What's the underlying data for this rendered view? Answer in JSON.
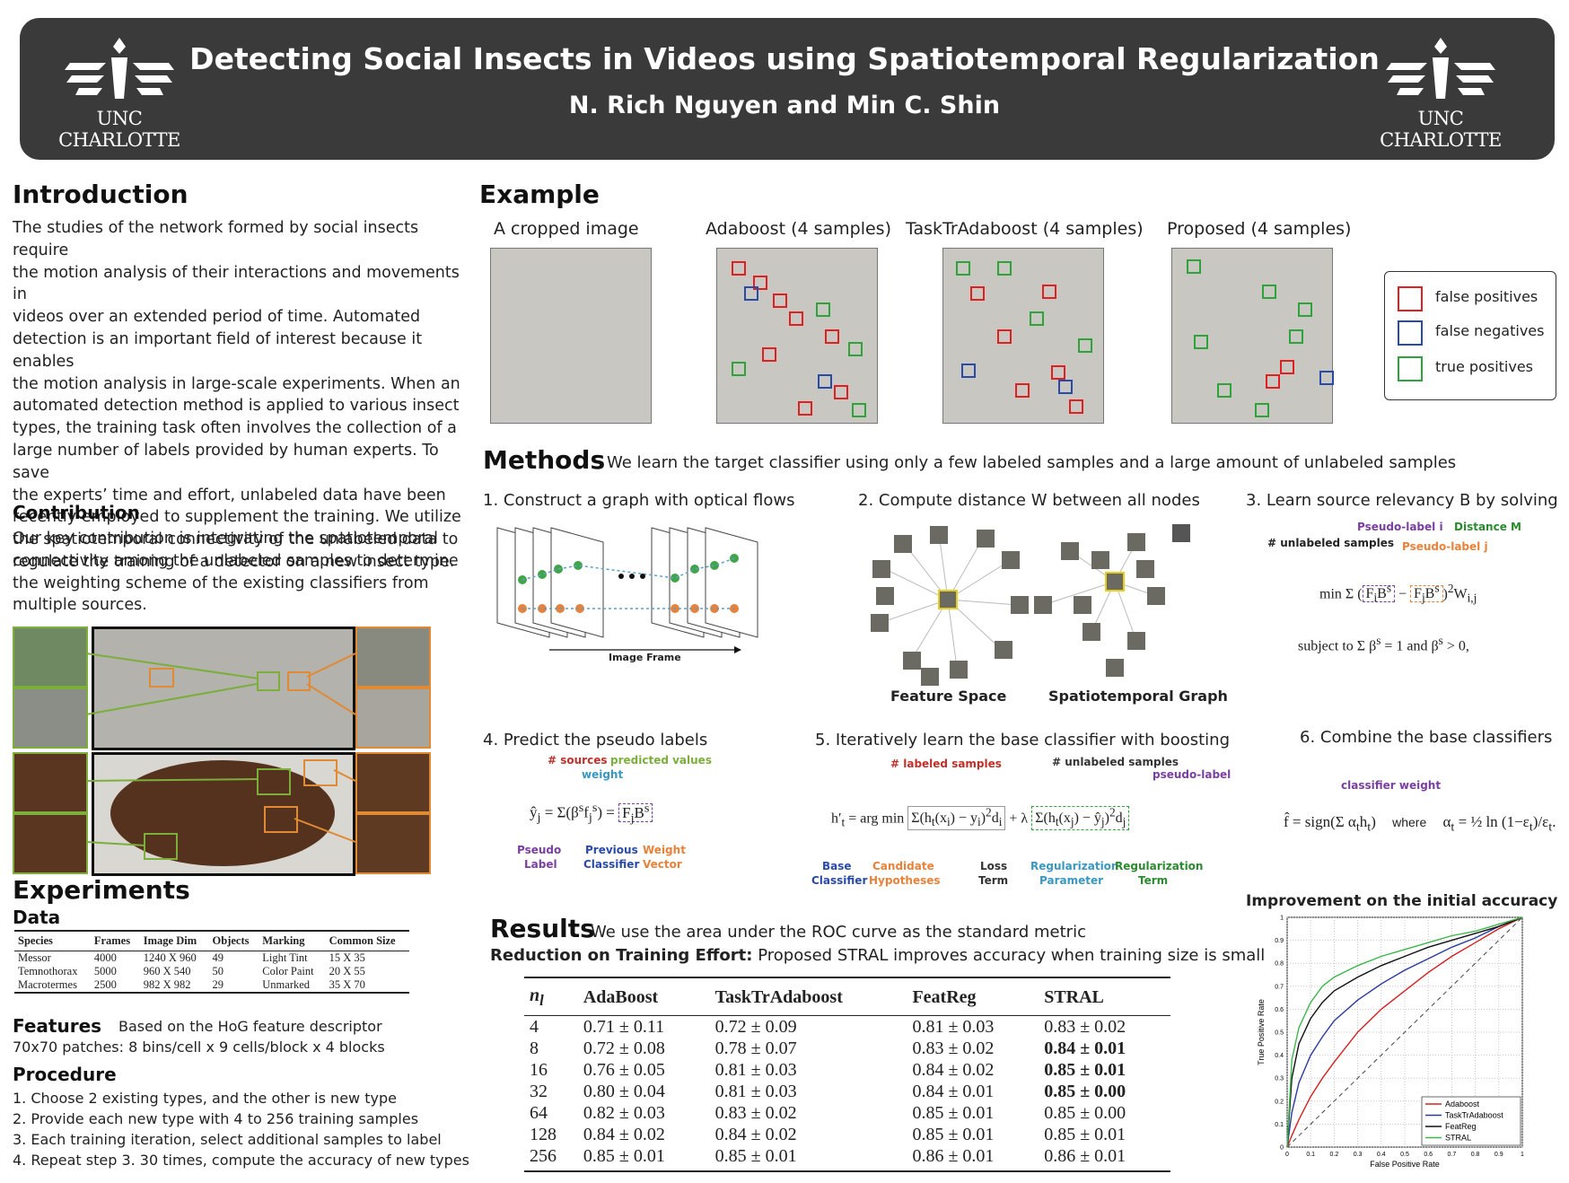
{
  "header": {
    "title": "Detecting Social Insects in Videos using Spatiotemporal Regularization",
    "authors": "N. Rich Nguyen and Min C. Shin",
    "logo_text": "UNC CHARLOTTE"
  },
  "intro": {
    "heading": "Introduction",
    "lines": [
      "The studies of the network formed by social insects require",
      "the motion analysis of their interactions and movements in",
      "videos over an extended period of time. Automated",
      "detection is an important field of interest because it enables",
      "the motion analysis in large-scale experiments. When an",
      "automated detection method is applied to various insect",
      "types, the training task often involves the collection of a",
      "large number of labels provided by human experts. To save",
      "the experts’ time and effort, unlabeled data have been",
      "recently employed to supplement the training. We utilize",
      "the spatiotemporal connectivity of the unlabeled data to",
      "regulate the training of a detector on a new insect type."
    ]
  },
  "contribution": {
    "heading": "Contribution",
    "lines": [
      "Our key contribution is integrating the spatiotemporal",
      "connectivity among the unlabeled samples to determine",
      "the weighting scheme of the existing classifiers from",
      "multiple sources."
    ]
  },
  "experiments": {
    "heading": "Experiments",
    "data_heading": "Data",
    "table_headers": [
      "Species",
      "Frames",
      "Image Dim",
      "Objects",
      "Marking",
      "Common Size"
    ],
    "table_rows": [
      [
        "Messor",
        "4000",
        "1240 X 960",
        "49",
        "Light Tint",
        "15 X 35"
      ],
      [
        "Temnothorax",
        "5000",
        "960 X 540",
        "50",
        "Color Paint",
        "20 X 55"
      ],
      [
        "Macrotermes",
        "2500",
        "982 X 982",
        "29",
        "Unmarked",
        "35 X 70"
      ]
    ],
    "features_heading": "Features",
    "features_text": "Based on the HoG feature descriptor",
    "features_line2": "70x70 patches: 8 bins/cell x 9 cells/block x 4 blocks",
    "procedure_heading": "Procedure",
    "procedure": [
      "1. Choose 2 existing types, and the other is new type",
      "2. Provide each new type with 4 to 256 training samples",
      "3. Each training iteration, select additional samples to label",
      "4. Repeat step 3. 30 times, compute the accuracy of new types"
    ]
  },
  "example": {
    "heading": "Example",
    "captions": [
      "A cropped image",
      "Adaboost (4 samples)",
      "TaskTrAdaboost (4 samples)",
      "Proposed (4 samples)"
    ],
    "legend": [
      "false positives",
      "false negatives",
      "true positives"
    ],
    "colors": {
      "fp": "#e02020",
      "fn": "#2a4aa8",
      "tp": "#2ea33a"
    }
  },
  "methods": {
    "heading": "Methods",
    "subtitle": "We learn the target classifier using only a few labeled samples and a large amount of unlabeled samples",
    "steps": [
      "1. Construct a graph with optical flows",
      "2. Compute distance W between all nodes",
      "3. Learn source relevancy B by solving",
      "4. Predict the pseudo labels",
      "5. Iteratively learn the base classifier with boosting",
      "6. Combine the base classifiers"
    ],
    "image_frame_label": "Image Frame",
    "feature_space_label": "Feature Space",
    "spatiotemporal_graph_label": "Spatiotemporal Graph",
    "step3_annotations": [
      "Pseudo-label i",
      "Distance M",
      "# unlabeled samples",
      "Pseudo-label j"
    ],
    "step3_subject": "subject to",
    "step4_annotations": [
      "# sources",
      "weight",
      "predicted values",
      "Pseudo",
      "Label",
      "Previous",
      "Classifier",
      "Weight",
      "Vector"
    ],
    "step5_annotations": [
      "# labeled samples",
      "# unlabeled samples",
      "pseudo-label",
      "Base",
      "Classifier",
      "Candidate",
      "Hypotheses",
      "Loss",
      "Term",
      "Regularization",
      "Parameter",
      "Regularization",
      "Term"
    ],
    "step6_annotations": [
      "classifier weight",
      "where"
    ]
  },
  "results": {
    "heading": "Results",
    "subtitle": "We use the area under the ROC curve as the standard metric",
    "reduction_bold": "Reduction on Training Effort:",
    "reduction_text": "Proposed STRAL improves accuracy when training size is small",
    "headers": [
      "n_l",
      "AdaBoost",
      "TaskTrAdaboost",
      "FeatReg",
      "STRAL"
    ],
    "rows": [
      [
        "4",
        "0.71 ± 0.11",
        "0.72 ± 0.09",
        "0.81 ± 0.03",
        "0.83 ± 0.02"
      ],
      [
        "8",
        "0.72 ± 0.08",
        "0.78 ± 0.07",
        "0.83 ± 0.02",
        "0.84 ± 0.01"
      ],
      [
        "16",
        "0.76 ± 0.05",
        "0.81 ± 0.03",
        "0.84 ± 0.02",
        "0.85 ± 0.01"
      ],
      [
        "32",
        "0.80 ± 0.04",
        "0.81 ± 0.03",
        "0.84 ± 0.01",
        "0.85 ± 0.00"
      ],
      [
        "64",
        "0.82 ± 0.03",
        "0.83 ± 0.02",
        "0.85 ± 0.01",
        "0.85 ± 0.00"
      ],
      [
        "128",
        "0.84 ± 0.02",
        "0.84 ± 0.02",
        "0.85 ± 0.01",
        "0.85 ± 0.01"
      ],
      [
        "256",
        "0.85 ± 0.01",
        "0.85 ± 0.01",
        "0.86 ± 0.01",
        "0.86 ± 0.01"
      ]
    ],
    "bold_rows": [
      1,
      2,
      3
    ]
  },
  "chart_data": {
    "type": "line",
    "title": "Improvement on the initial accuracy",
    "xlabel": "False Positive Rate",
    "ylabel": "True Positive Rate",
    "xlim": [
      0,
      1
    ],
    "ylim": [
      0,
      1
    ],
    "xticks": [
      "0",
      "0.1",
      "0.2",
      "0.3",
      "0.4",
      "0.5",
      "0.6",
      "0.7",
      "0.8",
      "0.9",
      "1"
    ],
    "yticks": [
      "0",
      "0.1",
      "0.2",
      "0.3",
      "0.4",
      "0.5",
      "0.6",
      "0.7",
      "0.8",
      "0.9",
      "1"
    ],
    "grid": true,
    "legend_position": "bottom-right",
    "series": [
      {
        "name": "Adaboost",
        "color": "#d62020",
        "x": [
          0,
          0.02,
          0.05,
          0.1,
          0.15,
          0.2,
          0.3,
          0.4,
          0.5,
          0.6,
          0.7,
          0.8,
          0.9,
          1
        ],
        "y": [
          0,
          0.05,
          0.12,
          0.22,
          0.3,
          0.37,
          0.5,
          0.6,
          0.68,
          0.76,
          0.83,
          0.89,
          0.95,
          1
        ]
      },
      {
        "name": "TaskTrAdaboost",
        "color": "#2a3aa0",
        "x": [
          0,
          0.02,
          0.05,
          0.1,
          0.15,
          0.2,
          0.3,
          0.4,
          0.5,
          0.6,
          0.7,
          0.8,
          0.9,
          1
        ],
        "y": [
          0,
          0.15,
          0.28,
          0.4,
          0.48,
          0.55,
          0.64,
          0.71,
          0.77,
          0.82,
          0.87,
          0.91,
          0.96,
          1
        ]
      },
      {
        "name": "FeatReg",
        "color": "#111111",
        "x": [
          0,
          0.02,
          0.05,
          0.1,
          0.15,
          0.2,
          0.3,
          0.4,
          0.5,
          0.6,
          0.7,
          0.8,
          0.9,
          1
        ],
        "y": [
          0,
          0.3,
          0.45,
          0.56,
          0.63,
          0.68,
          0.74,
          0.79,
          0.83,
          0.87,
          0.9,
          0.93,
          0.96,
          1
        ]
      },
      {
        "name": "STRAL",
        "color": "#3cb84a",
        "x": [
          0,
          0.02,
          0.05,
          0.1,
          0.15,
          0.2,
          0.3,
          0.4,
          0.5,
          0.6,
          0.7,
          0.8,
          0.9,
          1
        ],
        "y": [
          0,
          0.38,
          0.52,
          0.63,
          0.7,
          0.74,
          0.79,
          0.83,
          0.86,
          0.89,
          0.92,
          0.94,
          0.97,
          1
        ]
      }
    ]
  }
}
